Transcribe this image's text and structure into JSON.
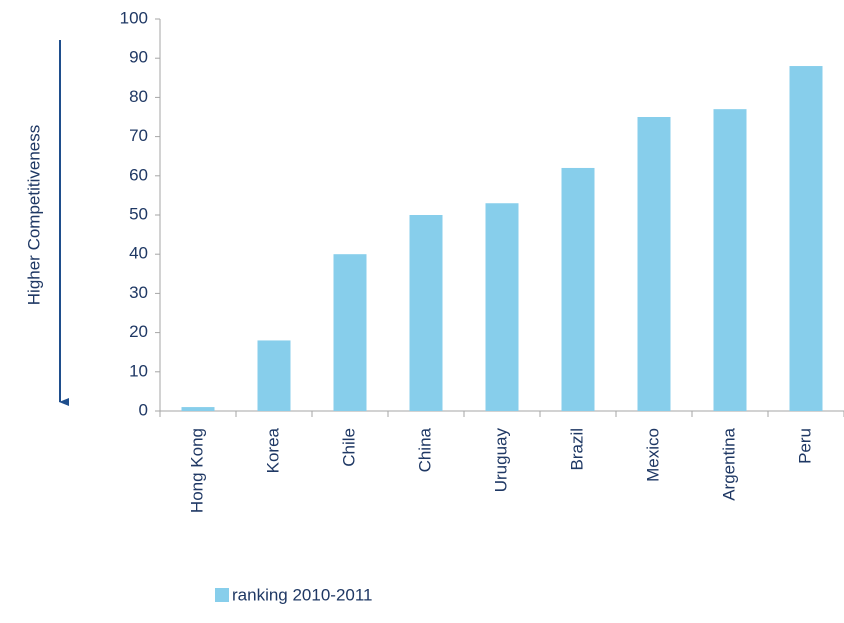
{
  "chart_data": {
    "type": "bar",
    "y_axis_label": "Higher Competitiveness",
    "categories": [
      "Hong Kong",
      "Korea",
      "Chile",
      "China",
      "Uruguay",
      "Brazil",
      "Mexico",
      "Argentina",
      "Peru"
    ],
    "series": [
      {
        "name": "ranking 2010-2011",
        "color": "#87ceeb",
        "values": [
          1,
          18,
          40,
          50,
          53,
          62,
          75,
          77,
          88
        ]
      }
    ],
    "ylim": [
      0,
      100
    ],
    "yticks": [
      0,
      10,
      20,
      30,
      40,
      50,
      60,
      70,
      80,
      90,
      100
    ],
    "legend": "bottom"
  }
}
